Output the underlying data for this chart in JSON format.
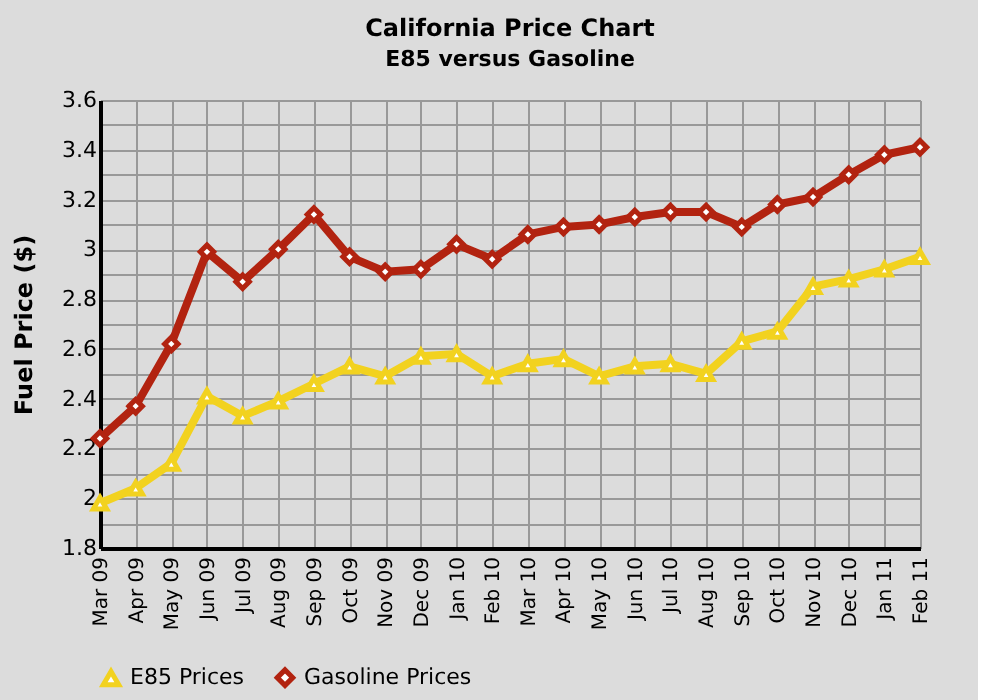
{
  "chart_data": {
    "type": "line",
    "title": "California Price Chart",
    "subtitle": "E85 versus Gasoline",
    "ylabel": "Fuel Price ($)",
    "categories": [
      "Mar 09",
      "Apr 09",
      "May 09",
      "Jun 09",
      "Jul 09",
      "Aug 09",
      "Sep 09",
      "Oct 09",
      "Nov 09",
      "Dec 09",
      "Jan 10",
      "Feb 10",
      "Mar 10",
      "Apr 10",
      "May 10",
      "Jun 10",
      "Jul 10",
      "Aug 10",
      "Sep 10",
      "Oct 10",
      "Nov 10",
      "Dec 10",
      "Jan 11",
      "Feb 11"
    ],
    "series": [
      {
        "name": "E85 Prices",
        "color": "#f2d21f",
        "marker": "triangle",
        "values": [
          1.98,
          2.04,
          2.14,
          2.41,
          2.33,
          2.39,
          2.46,
          2.53,
          2.49,
          2.57,
          2.58,
          2.49,
          2.54,
          2.56,
          2.49,
          2.53,
          2.54,
          2.5,
          2.63,
          2.67,
          2.85,
          2.88,
          2.92,
          2.97
        ]
      },
      {
        "name": "Gasoline Prices",
        "color": "#b22310",
        "marker": "diamond",
        "values": [
          2.24,
          2.37,
          2.62,
          2.99,
          2.87,
          3.0,
          3.14,
          2.97,
          2.91,
          2.92,
          3.02,
          2.96,
          3.06,
          3.09,
          3.1,
          3.13,
          3.15,
          3.15,
          3.09,
          3.18,
          3.21,
          3.3,
          3.38,
          3.41
        ]
      }
    ],
    "ylim": [
      1.8,
      3.6
    ],
    "yticks": [
      1.8,
      {
        "value": 1.9,
        "label": null
      },
      2,
      {
        "value": 2.1,
        "label": null
      },
      2.2,
      {
        "value": 2.3,
        "label": null
      },
      2.4,
      {
        "value": 2.5,
        "label": null
      },
      2.6,
      {
        "value": 2.7,
        "label": null
      },
      2.8,
      {
        "value": 2.9,
        "label": null
      },
      3,
      {
        "value": 3.1,
        "label": null
      },
      3.2,
      {
        "value": 3.3,
        "label": null
      },
      3.4,
      {
        "value": 3.5,
        "label": null
      },
      3.6
    ],
    "grid": true,
    "legend": "bottom",
    "line_style": "solid"
  }
}
